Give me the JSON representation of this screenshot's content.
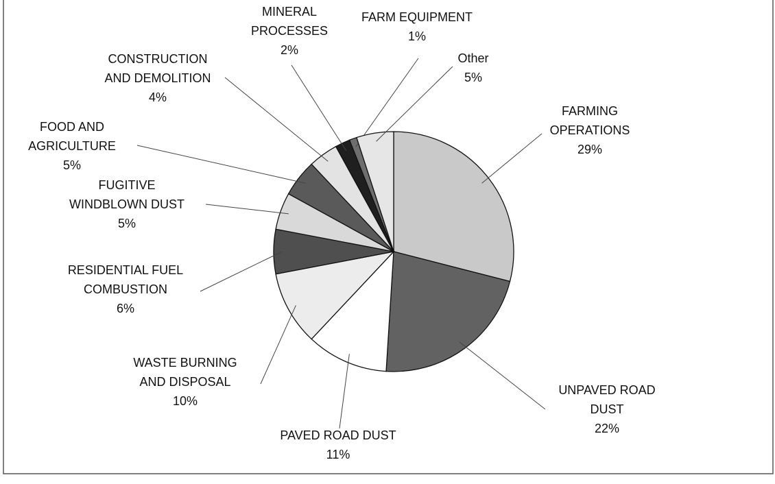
{
  "chart_data": {
    "type": "pie",
    "categories": [
      [
        "FARMING",
        "OPERATIONS"
      ],
      [
        "UNPAVED ROAD",
        "DUST"
      ],
      [
        "PAVED ROAD DUST"
      ],
      [
        "WASTE BURNING",
        "AND DISPOSAL"
      ],
      [
        "RESIDENTIAL FUEL",
        "COMBUSTION"
      ],
      [
        "FUGITIVE",
        "WINDBLOWN DUST"
      ],
      [
        "FOOD AND",
        "AGRICULTURE"
      ],
      [
        "CONSTRUCTION",
        "AND DEMOLITION"
      ],
      [
        "MINERAL",
        "PROCESSES"
      ],
      [
        "FARM EQUIPMENT"
      ],
      [
        "Other"
      ]
    ],
    "values": [
      29,
      22,
      11,
      10,
      6,
      5,
      5,
      4,
      2,
      1,
      5
    ],
    "value_labels": [
      "29%",
      "22%",
      "11%",
      "10%",
      "6%",
      "5%",
      "5%",
      "4%",
      "2%",
      "1%",
      "5%"
    ],
    "colors": [
      "#c9c9c9",
      "#626262",
      "#ffffff",
      "#ececec",
      "#4f4f4f",
      "#d9d9d9",
      "#5a5a5a",
      "#e3e3e3",
      "#1f1f1f",
      "#6e6e6e",
      "#e6e6e6"
    ]
  }
}
